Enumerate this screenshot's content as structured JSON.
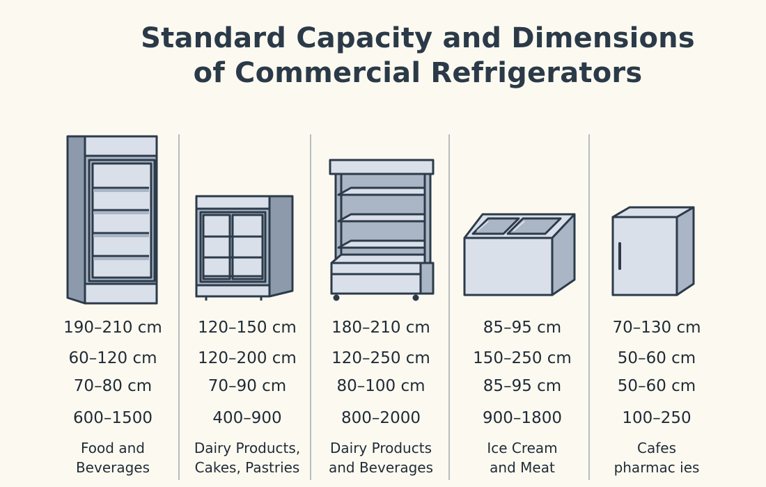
{
  "title": {
    "line1": "Standard Capacity and Dimensions",
    "line2": "of Commercial Refrigerators"
  },
  "columns": [
    {
      "icon": "upright-glass-door-refrigerator-icon",
      "height": "190–210 cm",
      "width": "60–120 cm",
      "depth": "70–80 cm",
      "capacity": "600–1500",
      "use_line1": "Food and",
      "use_line2": "Beverages"
    },
    {
      "icon": "counter-display-refrigerator-icon",
      "height": "120–150 cm",
      "width": "120–200 cm",
      "depth": "70–90 cm",
      "capacity": "400–900",
      "use_line1": "Dairy Products,",
      "use_line2": "Cakes, Pastries"
    },
    {
      "icon": "open-multideck-chiller-icon",
      "height": "180–210 cm",
      "width": "120–250 cm",
      "depth": "80–100 cm",
      "capacity": "800–2000",
      "use_line1": "Dairy Products",
      "use_line2": "and Beverages"
    },
    {
      "icon": "chest-freezer-icon",
      "height": "85–95 cm",
      "width": "150–250 cm",
      "depth": "85–95 cm",
      "capacity": "900–1800",
      "use_line1": "Ice Cream",
      "use_line2": "and Meat"
    },
    {
      "icon": "mini-refrigerator-icon",
      "height": "70–130 cm",
      "width": "50–60 cm",
      "depth": "50–60 cm",
      "capacity": "100–250",
      "use_line1": "Cafes",
      "use_line2": "pharmac ies"
    }
  ],
  "colors": {
    "background": "#fcfaf0",
    "outline": "#2c3a4a",
    "fill_light": "#d9e0ea",
    "fill_mid": "#aab6c6",
    "fill_dark": "#8d9aab"
  }
}
